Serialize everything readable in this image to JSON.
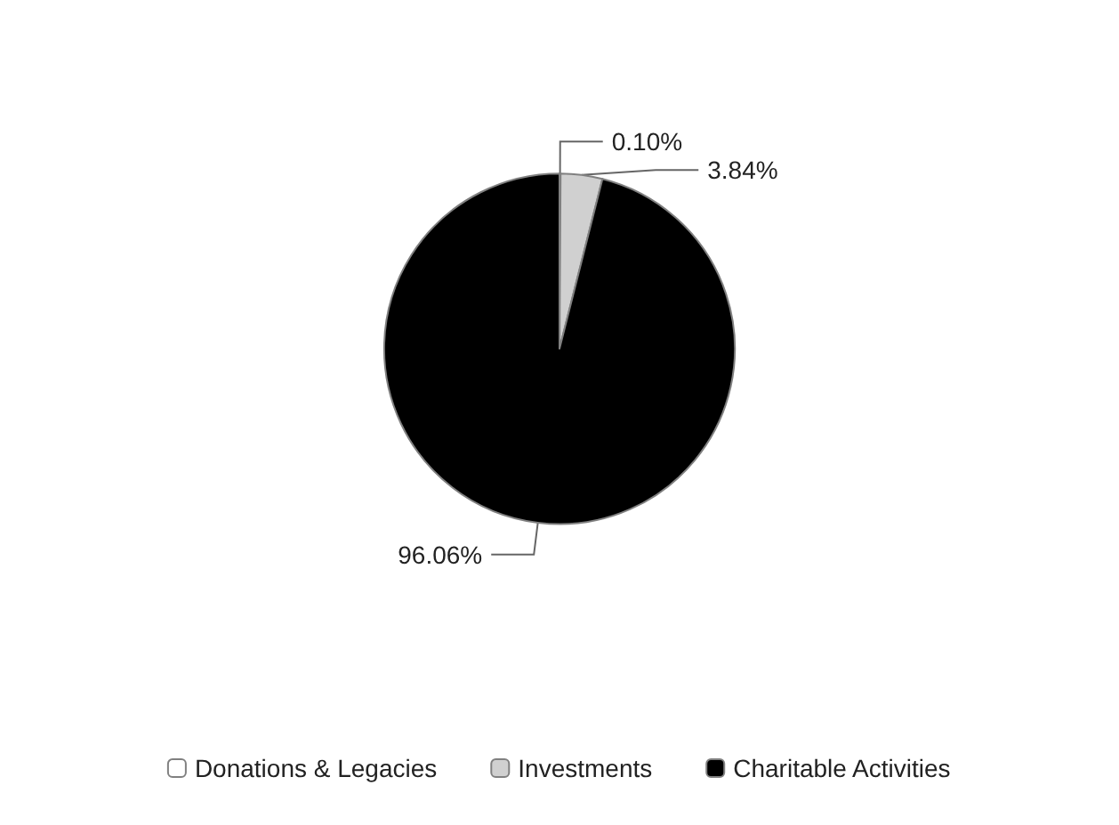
{
  "chart_data": {
    "type": "pie",
    "categories": [
      "Donations & Legacies",
      "Investments",
      "Charitable Activities"
    ],
    "values": [
      0.1,
      3.84,
      96.06
    ],
    "colors": [
      "#ffffff",
      "#d0d0d0",
      "#000000"
    ],
    "value_labels": [
      "0.10%",
      "3.84%",
      "96.06%"
    ],
    "legend": "bottom"
  }
}
